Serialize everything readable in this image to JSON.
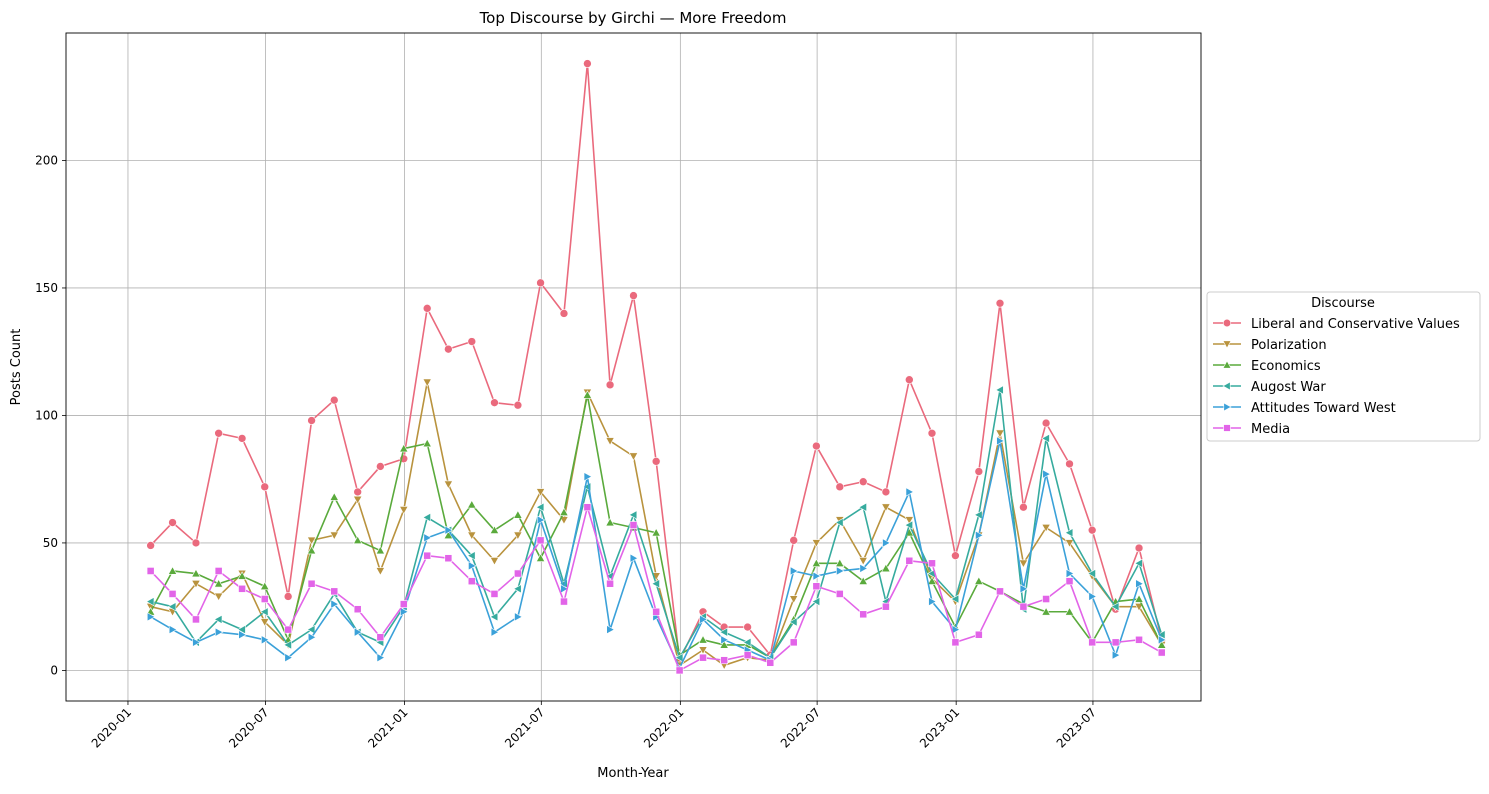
{
  "chart_data": {
    "type": "line",
    "title": "Top Discourse by Girchi — More Freedom",
    "xlabel": "Month-Year",
    "ylabel": "Posts Count",
    "grid": true,
    "legend": {
      "title": "Discourse",
      "placement": "outside-right"
    },
    "x_range": [
      "2019-10-11",
      "2023-11-21"
    ],
    "ylim": [
      -12,
      250
    ],
    "x_ticks": [
      "2020-01",
      "2020-07",
      "2021-01",
      "2021-07",
      "2022-01",
      "2022-07",
      "2023-01",
      "2023-07"
    ],
    "y_ticks": [
      0,
      50,
      100,
      150,
      200
    ],
    "x": [
      "2020-01-31",
      "2020-02-29",
      "2020-03-31",
      "2020-04-30",
      "2020-05-31",
      "2020-06-30",
      "2020-07-31",
      "2020-08-31",
      "2020-09-30",
      "2020-10-31",
      "2020-11-30",
      "2020-12-31",
      "2021-01-31",
      "2021-02-28",
      "2021-03-31",
      "2021-04-30",
      "2021-05-31",
      "2021-06-30",
      "2021-07-31",
      "2021-08-31",
      "2021-09-30",
      "2021-10-31",
      "2021-11-30",
      "2021-12-31",
      "2022-01-31",
      "2022-02-28",
      "2022-03-31",
      "2022-04-30",
      "2022-05-31",
      "2022-06-30",
      "2022-07-31",
      "2022-08-31",
      "2022-09-30",
      "2022-10-31",
      "2022-11-30",
      "2022-12-31",
      "2023-01-31",
      "2023-02-28",
      "2023-03-31",
      "2023-04-30",
      "2023-05-31",
      "2023-06-30",
      "2023-07-31",
      "2023-08-31",
      "2023-09-30"
    ],
    "series": [
      {
        "name": "Liberal and Conservative Values",
        "color": "#ea6a7d",
        "marker": "circle",
        "values": [
          49,
          58,
          50,
          93,
          91,
          72,
          29,
          98,
          106,
          70,
          80,
          83,
          142,
          126,
          129,
          105,
          104,
          152,
          140,
          238,
          112,
          147,
          82,
          4,
          23,
          17,
          17,
          6,
          51,
          88,
          72,
          74,
          70,
          114,
          93,
          45,
          78,
          144,
          64,
          97,
          81,
          55,
          24,
          48,
          12
        ]
      },
      {
        "name": "Polarization",
        "color": "#b9933e",
        "marker": "triangle-down",
        "values": [
          25,
          23,
          34,
          29,
          38,
          19,
          10,
          51,
          53,
          67,
          39,
          63,
          113,
          73,
          53,
          43,
          53,
          70,
          59,
          109,
          90,
          84,
          37,
          2,
          8,
          2,
          5,
          4,
          28,
          50,
          59,
          43,
          64,
          59,
          36,
          27,
          53,
          93,
          42,
          56,
          50,
          37,
          25,
          25,
          10
        ]
      },
      {
        "name": "Economics",
        "color": "#5aaa3c",
        "marker": "triangle-up",
        "values": [
          23,
          39,
          38,
          34,
          37,
          33,
          12,
          47,
          68,
          51,
          47,
          87,
          89,
          53,
          65,
          55,
          61,
          44,
          62,
          108,
          58,
          56,
          54,
          6,
          12,
          10,
          10,
          5,
          20,
          42,
          42,
          35,
          40,
          54,
          35,
          17,
          35,
          31,
          26,
          23,
          23,
          11,
          27,
          28,
          10
        ]
      },
      {
        "name": "Augost War",
        "color": "#36ab9e",
        "marker": "triangle-left",
        "values": [
          27,
          25,
          11,
          20,
          16,
          23,
          10,
          16,
          30,
          15,
          11,
          25,
          60,
          55,
          45,
          21,
          32,
          64,
          34,
          72,
          37,
          61,
          34,
          5,
          21,
          15,
          11,
          5,
          19,
          27,
          58,
          64,
          27,
          57,
          38,
          28,
          61,
          110,
          24,
          91,
          54,
          38,
          25,
          42,
          14
        ]
      },
      {
        "name": "Attitudes Toward West",
        "color": "#3ba1d9",
        "marker": "triangle-right",
        "values": [
          21,
          16,
          11,
          15,
          14,
          12,
          5,
          13,
          26,
          15,
          5,
          23,
          52,
          55,
          41,
          15,
          21,
          59,
          32,
          76,
          16,
          44,
          21,
          1,
          20,
          12,
          8,
          4,
          39,
          37,
          39,
          40,
          50,
          70,
          27,
          16,
          53,
          90,
          32,
          77,
          38,
          29,
          6,
          34,
          12
        ]
      },
      {
        "name": "Media",
        "color": "#e264e8",
        "marker": "square",
        "values": [
          39,
          30,
          20,
          39,
          32,
          28,
          16,
          34,
          31,
          24,
          13,
          26,
          45,
          44,
          35,
          30,
          38,
          51,
          27,
          64,
          34,
          57,
          23,
          0,
          5,
          4,
          6,
          3,
          11,
          33,
          30,
          22,
          25,
          43,
          42,
          11,
          14,
          31,
          25,
          28,
          35,
          11,
          11,
          12,
          7
        ]
      }
    ]
  }
}
